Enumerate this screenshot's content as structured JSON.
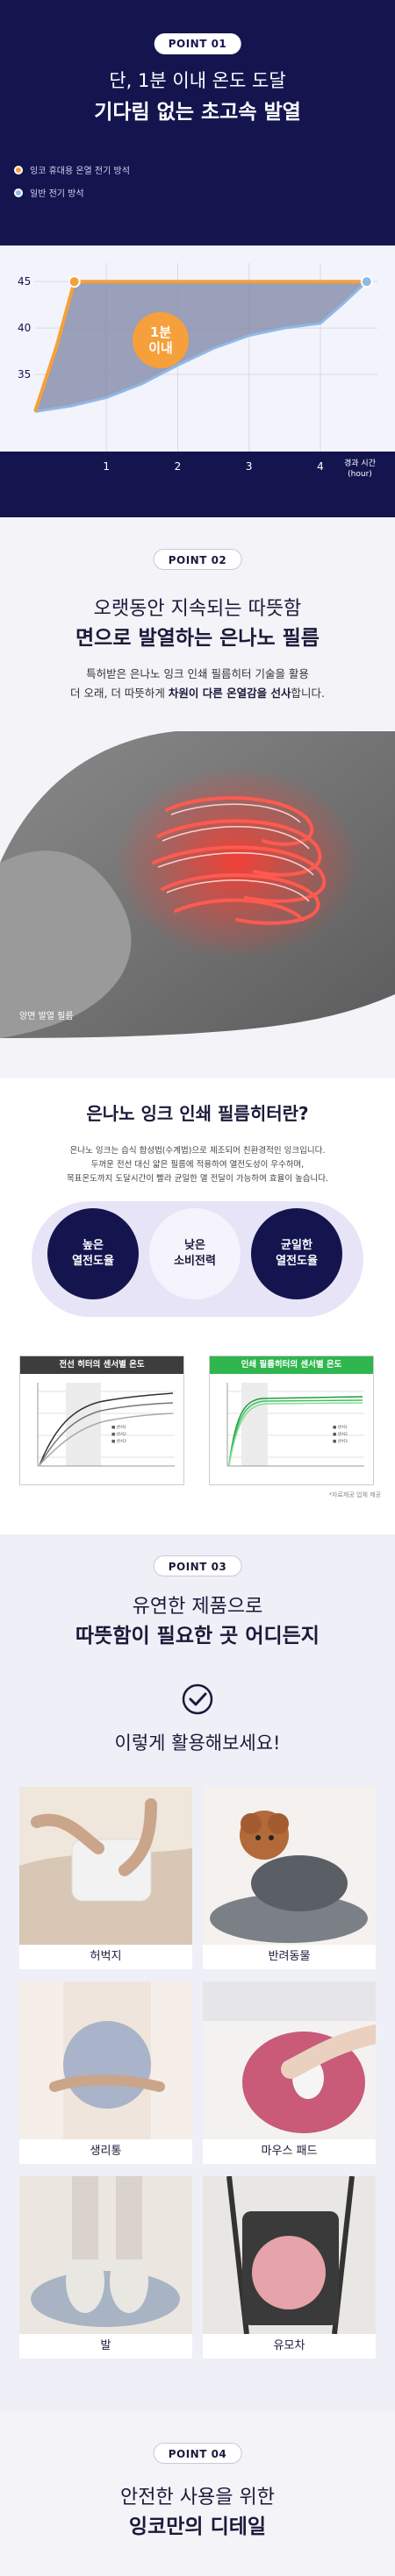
{
  "point1": {
    "badge": "POINT 01",
    "title_line1": "단, 1분 이내 온도 도달",
    "title_line2": "기다림 없는 초고속 발열",
    "legend": [
      {
        "label": "잉코 휴대용 온열 전기 방석",
        "color": "#f5a03a"
      },
      {
        "label": "일반 전기 방석",
        "color": "#8fb8e6"
      }
    ],
    "callout_line1": "1분",
    "callout_line2": "이내",
    "x_axis_label_line1": "경과 시간",
    "x_axis_label_line2": "(hour)"
  },
  "chart_data": {
    "type": "line",
    "title": "",
    "xlabel": "경과 시간 (hour)",
    "ylabel": "",
    "x_ticks": [
      "1",
      "2",
      "3",
      "4"
    ],
    "y_ticks": [
      "45",
      "40",
      "35"
    ],
    "xlim": [
      0,
      4.8
    ],
    "ylim": [
      30,
      47
    ],
    "series": [
      {
        "name": "잉코 휴대용 온열 전기 방석",
        "color": "#f5a03a",
        "x": [
          0,
          0.3,
          0.55,
          1,
          2,
          3,
          4,
          4.65
        ],
        "y": [
          31,
          38,
          45,
          45,
          45,
          45,
          45,
          45
        ]
      },
      {
        "name": "일반 전기 방석",
        "color": "#8fb8e6",
        "x": [
          0,
          0.5,
          1,
          1.5,
          2,
          2.5,
          3,
          3.5,
          4,
          4.3,
          4.65
        ],
        "y": [
          31,
          31.6,
          32.5,
          34,
          36,
          37.8,
          39.2,
          40,
          40.5,
          42.5,
          45
        ]
      }
    ]
  },
  "point2": {
    "badge": "POINT 02",
    "title_line1": "오랫동안 지속되는 따뜻함",
    "title_line2": "면으로 발열하는 은나노 필름",
    "desc_line1": "특허받은 은나노 잉크 인쇄 필름히터 기술을 활용",
    "desc_line2_a": "더 오래, 더 따뜻하게 ",
    "desc_line2_b": "차원이 다른 온열감을 선사",
    "desc_line2_c": "합니다.",
    "film_label": "양면 발열 필름"
  },
  "film_section": {
    "title": "은나노 잉크 인쇄 필름히터란?",
    "desc_line1": "은나노 잉크는 습식 합성법(수계법)으로 제조되어 친환경적인 잉크입니다.",
    "desc_line2": "두꺼운 전선 대신 얇은 필름에 적용하여 열전도성이 우수하며,",
    "desc_line3": "목표온도까지 도달시간이 빨라 균일한 열 전달이 가능하여 효율이 높습니다.",
    "features": [
      {
        "line1": "높은",
        "line2": "열전도율"
      },
      {
        "line1": "낮은",
        "line2": "소비전력"
      },
      {
        "line1": "균일한",
        "line2": "열전도율"
      }
    ],
    "chart_left_title": "전선 히터의 센서별 온도",
    "chart_right_title": "인쇄 필름히터의 센서별 온도",
    "note": "*자료제공 업체 제공"
  },
  "point3": {
    "badge": "POINT 03",
    "title_line1": "유연한 제품으로",
    "title_line2": "따뜻함이 필요한 곳 어디든지",
    "subtitle": "이렇게 활용해보세요!",
    "uses": [
      "허벅지",
      "반려동물",
      "생리통",
      "마우스 패드",
      "발",
      "유모차"
    ]
  },
  "point4": {
    "badge": "POINT 04",
    "title_line1": "안전한 사용을 위한",
    "title_line2": "잉코만의 디테일"
  }
}
